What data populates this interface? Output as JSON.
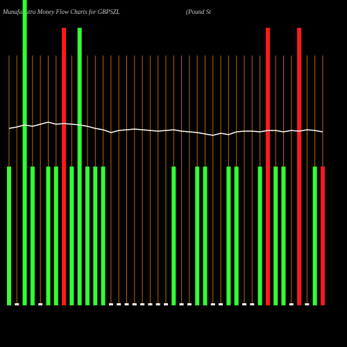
{
  "chart_data": {
    "type": "bar",
    "title": "MunafaSutra  Money Flow  Charts for GBPSZL",
    "subtitle": "(Pound St",
    "values": [
      200,
      3,
      440,
      200,
      3,
      200,
      200,
      400,
      200,
      400,
      200,
      200,
      200,
      3,
      3,
      3,
      3,
      3,
      3,
      3,
      3,
      200,
      3,
      3,
      200,
      200,
      3,
      3,
      200,
      200,
      3,
      3,
      200,
      400,
      200,
      200,
      3,
      400,
      3,
      200,
      200
    ],
    "colors": [
      "#33ff33",
      "#ffffff",
      "#33ff33",
      "#33ff33",
      "#ffffff",
      "#33ff33",
      "#33ff33",
      "#ff1a1a",
      "#33ff33",
      "#33ff33",
      "#33ff33",
      "#33ff33",
      "#33ff33",
      "#ffffff",
      "#ffffff",
      "#ffffff",
      "#ffffff",
      "#ffffff",
      "#ffffff",
      "#ffffff",
      "#ffffff",
      "#33ff33",
      "#ffffff",
      "#ffffff",
      "#33ff33",
      "#33ff33",
      "#ffffff",
      "#ffffff",
      "#33ff33",
      "#33ff33",
      "#ffffff",
      "#ffffff",
      "#33ff33",
      "#ff1a1a",
      "#33ff33",
      "#33ff33",
      "#ffffff",
      "#ff1a1a",
      "#ffffff",
      "#33ff33",
      "#ff1a1a"
    ],
    "line": [
      255,
      257,
      260,
      258,
      261,
      264,
      261,
      262,
      261,
      260,
      258,
      255,
      253,
      249,
      252,
      253,
      254,
      253,
      252,
      251,
      252,
      253,
      251,
      250,
      249,
      247,
      245,
      248,
      246,
      250,
      251,
      251,
      250,
      252,
      252,
      250,
      252,
      251,
      253,
      252,
      250
    ],
    "line_color": "#ffffff",
    "gridline_color": "#b8680a",
    "ylim": [
      0,
      440
    ]
  }
}
